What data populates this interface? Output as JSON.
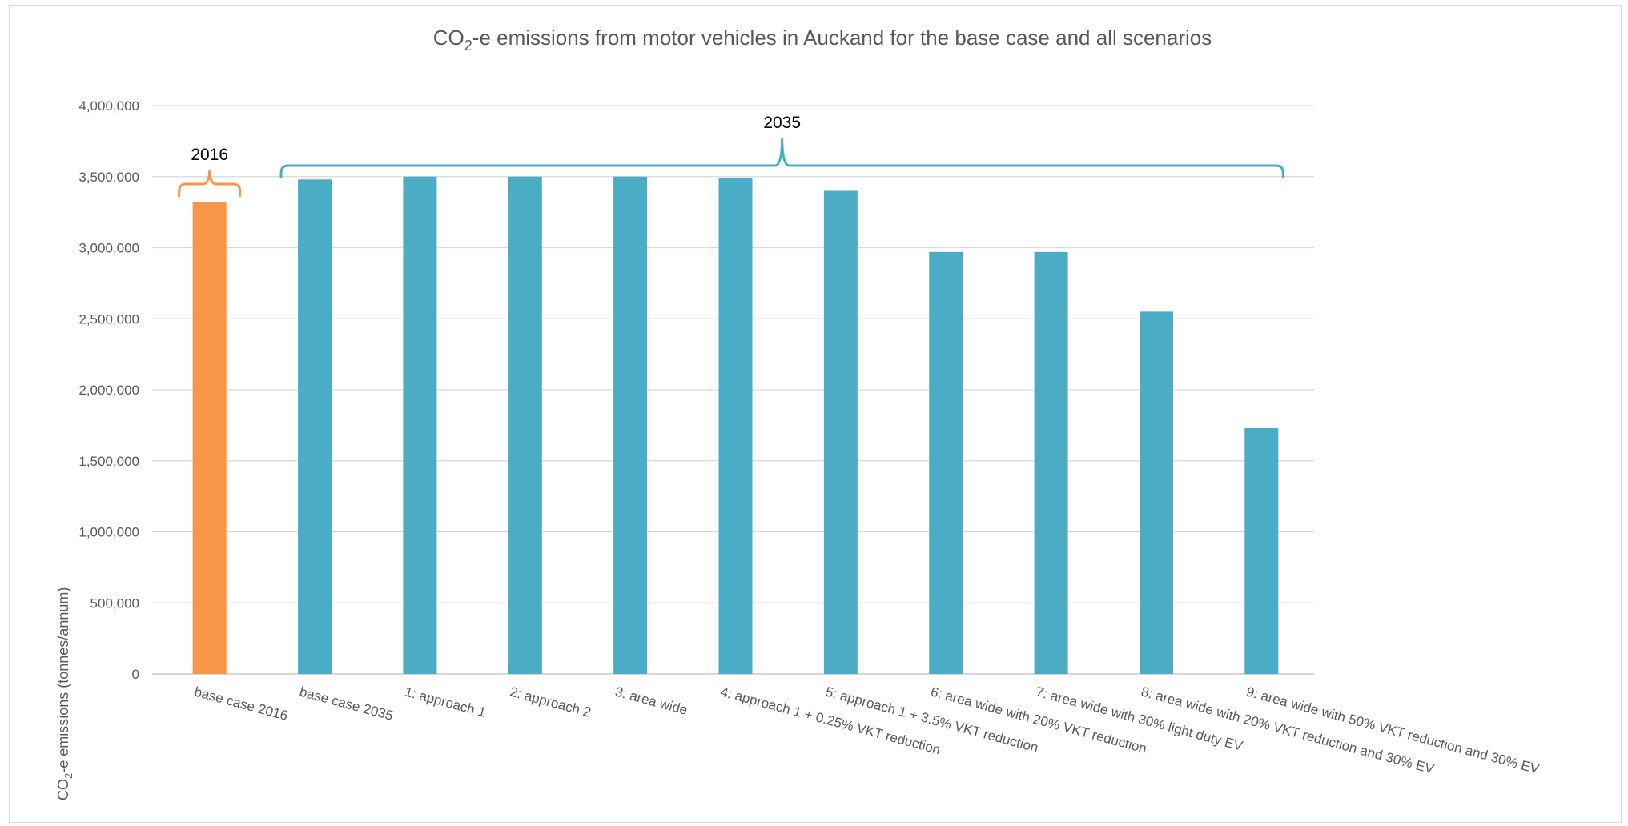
{
  "chart_data": {
    "type": "bar",
    "title": {
      "main_prefix": "CO",
      "main_sub": "2",
      "main_suffix": "-e emissions from motor vehicles in Auckand for the base case and all scenarios"
    },
    "ylabel": {
      "prefix": "CO",
      "sub": "2",
      "suffix": "-e emissions (tonnes/annum)"
    },
    "xlabel": "",
    "ylim": [
      0,
      4000000
    ],
    "y_ticks": [
      0,
      500000,
      1000000,
      1500000,
      2000000,
      2500000,
      3000000,
      3500000,
      4000000
    ],
    "y_tick_labels": [
      "0",
      "500,000",
      "1,000,000",
      "1,500,000",
      "2,000,000",
      "2,500,000",
      "3,000,000",
      "3,500,000",
      "4,000,000"
    ],
    "grid": true,
    "legend": "none",
    "categories": [
      "base case 2016",
      "base case 2035",
      "1: approach 1",
      "2: approach 2",
      "3: area wide",
      "4: approach 1 + 0.25% VKT reduction",
      "5: approach 1 + 3.5% VKT reduction",
      "6: area wide with 20% VKT reduction",
      "7: area wide with 30% light duty EV",
      "8: area wide with 20% VKT reduction and 30% EV",
      "9: area wide with 50% VKT reduction and 30% EV"
    ],
    "values": [
      3320000,
      3480000,
      3500000,
      3500000,
      3500000,
      3490000,
      3400000,
      2970000,
      2970000,
      2550000,
      1730000
    ],
    "bar_colors": [
      "#F79646",
      "#4BACC6",
      "#4BACC6",
      "#4BACC6",
      "#4BACC6",
      "#4BACC6",
      "#4BACC6",
      "#4BACC6",
      "#4BACC6",
      "#4BACC6",
      "#4BACC6"
    ],
    "annotations": [
      {
        "label": "2016",
        "spans": [
          0,
          0
        ],
        "color": "#F79646"
      },
      {
        "label": "2035",
        "spans": [
          1,
          10
        ],
        "color": "#4BACC6"
      }
    ]
  },
  "colors": {
    "text": "#595959",
    "grid": "#d9d9d9",
    "accent_orange": "#F79646",
    "accent_teal": "#4BACC6"
  }
}
